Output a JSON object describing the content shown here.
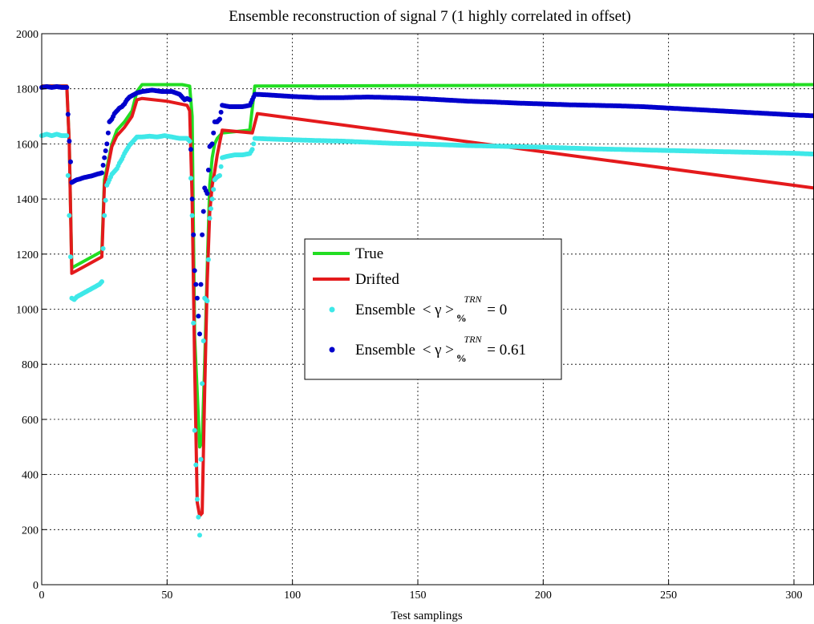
{
  "chart_data": {
    "type": "line",
    "title": "Ensemble reconstruction of signal 7 (1 highly correlated in offset)",
    "xlabel": "Test samplings",
    "ylabel": "",
    "xlim": [
      0,
      308
    ],
    "ylim": [
      0,
      2000
    ],
    "xticks": [
      0,
      50,
      100,
      150,
      200,
      250,
      300
    ],
    "yticks": [
      0,
      200,
      400,
      600,
      800,
      1000,
      1200,
      1400,
      1600,
      1800,
      2000
    ],
    "grid": true,
    "legend_position": "center",
    "series": [
      {
        "name": "True",
        "style": "line",
        "color": "#22dd22",
        "points": [
          [
            0,
            1810
          ],
          [
            10,
            1810
          ],
          [
            11,
            1600
          ],
          [
            12,
            1150
          ],
          [
            14,
            1160
          ],
          [
            16,
            1170
          ],
          [
            20,
            1190
          ],
          [
            24,
            1210
          ],
          [
            25,
            1470
          ],
          [
            28,
            1600
          ],
          [
            30,
            1650
          ],
          [
            33,
            1680
          ],
          [
            36,
            1720
          ],
          [
            38,
            1790
          ],
          [
            40,
            1815
          ],
          [
            56,
            1815
          ],
          [
            59,
            1810
          ],
          [
            60,
            1700
          ],
          [
            61,
            900
          ],
          [
            62,
            700
          ],
          [
            63,
            500
          ],
          [
            64,
            520
          ],
          [
            65,
            800
          ],
          [
            66,
            1150
          ],
          [
            67,
            1450
          ],
          [
            68,
            1550
          ],
          [
            69,
            1600
          ],
          [
            70,
            1620
          ],
          [
            72,
            1640
          ],
          [
            83,
            1650
          ],
          [
            85,
            1810
          ],
          [
            308,
            1815
          ]
        ]
      },
      {
        "name": "Drifted",
        "style": "line",
        "color": "#e41a1c",
        "points": [
          [
            0,
            1810
          ],
          [
            10,
            1810
          ],
          [
            11,
            1600
          ],
          [
            12,
            1130
          ],
          [
            14,
            1140
          ],
          [
            16,
            1150
          ],
          [
            20,
            1170
          ],
          [
            24,
            1190
          ],
          [
            25,
            1450
          ],
          [
            28,
            1590
          ],
          [
            30,
            1630
          ],
          [
            33,
            1660
          ],
          [
            36,
            1700
          ],
          [
            38,
            1760
          ],
          [
            40,
            1765
          ],
          [
            50,
            1755
          ],
          [
            58,
            1740
          ],
          [
            59,
            1720
          ],
          [
            60,
            1400
          ],
          [
            61,
            800
          ],
          [
            62,
            300
          ],
          [
            63,
            250
          ],
          [
            64,
            260
          ],
          [
            65,
            700
          ],
          [
            66,
            1100
          ],
          [
            67,
            1350
          ],
          [
            68,
            1450
          ],
          [
            69,
            1500
          ],
          [
            70,
            1560
          ],
          [
            72,
            1650
          ],
          [
            84,
            1640
          ],
          [
            86,
            1710
          ],
          [
            308,
            1440
          ]
        ]
      },
      {
        "name": "Ensemble < γ >%TRN = 0",
        "style": "dots",
        "color": "#3ee8e8",
        "points": [
          [
            0,
            1630
          ],
          [
            2,
            1635
          ],
          [
            4,
            1630
          ],
          [
            6,
            1635
          ],
          [
            8,
            1630
          ],
          [
            10,
            1630
          ],
          [
            11,
            1340
          ],
          [
            12,
            1040
          ],
          [
            13,
            1035
          ],
          [
            14,
            1045
          ],
          [
            15,
            1050
          ],
          [
            16,
            1055
          ],
          [
            17,
            1060
          ],
          [
            18,
            1065
          ],
          [
            19,
            1070
          ],
          [
            20,
            1075
          ],
          [
            21,
            1080
          ],
          [
            22,
            1085
          ],
          [
            23,
            1090
          ],
          [
            24,
            1100
          ],
          [
            25,
            1340
          ],
          [
            26,
            1450
          ],
          [
            27,
            1470
          ],
          [
            28,
            1490
          ],
          [
            29,
            1500
          ],
          [
            30,
            1510
          ],
          [
            31,
            1530
          ],
          [
            32,
            1545
          ],
          [
            33,
            1565
          ],
          [
            34,
            1580
          ],
          [
            35,
            1595
          ],
          [
            36,
            1605
          ],
          [
            37,
            1615
          ],
          [
            38,
            1625
          ],
          [
            40,
            1625
          ],
          [
            43,
            1628
          ],
          [
            46,
            1625
          ],
          [
            49,
            1630
          ],
          [
            52,
            1625
          ],
          [
            55,
            1620
          ],
          [
            58,
            1620
          ],
          [
            59,
            1610
          ],
          [
            60,
            1340
          ],
          [
            61,
            560
          ],
          [
            62,
            310
          ],
          [
            63,
            180
          ],
          [
            64,
            730
          ],
          [
            65,
            1040
          ],
          [
            66,
            1030
          ],
          [
            67,
            1330
          ],
          [
            68,
            1400
          ],
          [
            69,
            1470
          ],
          [
            70,
            1480
          ],
          [
            71,
            1485
          ],
          [
            72,
            1550
          ],
          [
            74,
            1555
          ],
          [
            77,
            1560
          ],
          [
            80,
            1560
          ],
          [
            83,
            1565
          ],
          [
            84,
            1580
          ],
          [
            85,
            1620
          ],
          [
            90,
            1618
          ],
          [
            100,
            1615
          ],
          [
            110,
            1612
          ],
          [
            120,
            1610
          ],
          [
            130,
            1606
          ],
          [
            140,
            1602
          ],
          [
            150,
            1600
          ],
          [
            160,
            1597
          ],
          [
            170,
            1594
          ],
          [
            180,
            1592
          ],
          [
            190,
            1590
          ],
          [
            200,
            1588
          ],
          [
            210,
            1585
          ],
          [
            220,
            1582
          ],
          [
            230,
            1580
          ],
          [
            240,
            1578
          ],
          [
            250,
            1576
          ],
          [
            260,
            1574
          ],
          [
            270,
            1572
          ],
          [
            280,
            1570
          ],
          [
            290,
            1568
          ],
          [
            300,
            1566
          ],
          [
            308,
            1563
          ]
        ]
      },
      {
        "name": "Ensemble < γ >%TRN = 0.61",
        "style": "dots",
        "color": "#0000cc",
        "points": [
          [
            0,
            1805
          ],
          [
            2,
            1808
          ],
          [
            4,
            1805
          ],
          [
            6,
            1808
          ],
          [
            8,
            1805
          ],
          [
            10,
            1805
          ],
          [
            11,
            1610
          ],
          [
            12,
            1460
          ],
          [
            13,
            1465
          ],
          [
            14,
            1470
          ],
          [
            15,
            1472
          ],
          [
            16,
            1475
          ],
          [
            17,
            1478
          ],
          [
            18,
            1480
          ],
          [
            19,
            1482
          ],
          [
            20,
            1484
          ],
          [
            21,
            1487
          ],
          [
            22,
            1490
          ],
          [
            23,
            1492
          ],
          [
            24,
            1495
          ],
          [
            25,
            1550
          ],
          [
            26,
            1600
          ],
          [
            27,
            1680
          ],
          [
            28,
            1690
          ],
          [
            29,
            1710
          ],
          [
            30,
            1720
          ],
          [
            31,
            1730
          ],
          [
            32,
            1735
          ],
          [
            33,
            1745
          ],
          [
            34,
            1760
          ],
          [
            35,
            1770
          ],
          [
            36,
            1775
          ],
          [
            37,
            1780
          ],
          [
            38,
            1785
          ],
          [
            40,
            1790
          ],
          [
            44,
            1795
          ],
          [
            48,
            1790
          ],
          [
            52,
            1790
          ],
          [
            55,
            1780
          ],
          [
            57,
            1760
          ],
          [
            58,
            1765
          ],
          [
            59,
            1760
          ],
          [
            60,
            1400
          ],
          [
            61,
            1140
          ],
          [
            62,
            1040
          ],
          [
            63,
            910
          ],
          [
            64,
            1270
          ],
          [
            65,
            1440
          ],
          [
            66,
            1420
          ],
          [
            67,
            1590
          ],
          [
            68,
            1600
          ],
          [
            69,
            1680
          ],
          [
            70,
            1680
          ],
          [
            71,
            1690
          ],
          [
            72,
            1740
          ],
          [
            75,
            1735
          ],
          [
            80,
            1735
          ],
          [
            83,
            1740
          ],
          [
            84,
            1760
          ],
          [
            85,
            1780
          ],
          [
            90,
            1778
          ],
          [
            100,
            1772
          ],
          [
            110,
            1768
          ],
          [
            120,
            1768
          ],
          [
            130,
            1770
          ],
          [
            140,
            1768
          ],
          [
            150,
            1765
          ],
          [
            160,
            1760
          ],
          [
            170,
            1755
          ],
          [
            180,
            1752
          ],
          [
            190,
            1748
          ],
          [
            200,
            1745
          ],
          [
            210,
            1742
          ],
          [
            220,
            1740
          ],
          [
            230,
            1738
          ],
          [
            240,
            1735
          ],
          [
            250,
            1730
          ],
          [
            260,
            1725
          ],
          [
            270,
            1720
          ],
          [
            280,
            1715
          ],
          [
            290,
            1710
          ],
          [
            300,
            1705
          ],
          [
            308,
            1702
          ]
        ]
      }
    ],
    "legend": {
      "entries": [
        {
          "text": "True"
        },
        {
          "text": "Drifted"
        },
        {
          "prefix": "Ensemble",
          "math": "< γ >",
          "sub": "%",
          "sup": "TRN",
          "value": "= 0"
        },
        {
          "prefix": "Ensemble",
          "math": "< γ >",
          "sub": "%",
          "sup": "TRN",
          "value": "= 0.61"
        }
      ]
    }
  }
}
